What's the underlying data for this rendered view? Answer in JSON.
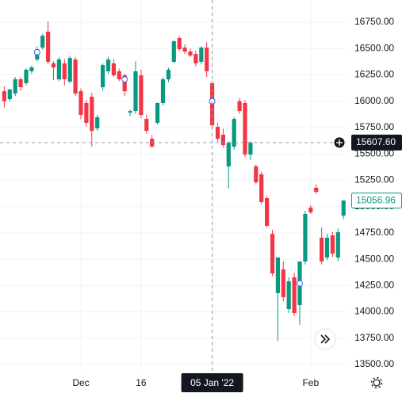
{
  "chart_data": {
    "type": "candlestick",
    "categories": [
      null,
      null,
      null,
      null,
      null,
      null,
      null,
      null,
      null,
      null,
      null,
      null,
      null,
      null,
      "Dec",
      null,
      null,
      null,
      null,
      null,
      null,
      null,
      null,
      null,
      null,
      "16",
      null,
      null,
      null,
      null,
      null,
      null,
      null,
      null,
      null,
      null,
      null,
      null,
      "05 Jan '22",
      null,
      null,
      null,
      null,
      null,
      null,
      null,
      null,
      null,
      null,
      null,
      null,
      null,
      null,
      null,
      null,
      null,
      "Feb",
      null,
      null,
      null,
      null,
      null,
      null
    ],
    "open": [
      16095,
      16020,
      16073,
      16208,
      16171,
      16284,
      16396,
      16509,
      16660,
      16359,
      16208,
      16359,
      16186,
      16396,
      16095,
      15983,
      16043,
      15742,
      16133,
      16284,
      16359,
      16284,
      16246,
      15892,
      15907,
      16246,
      15832,
      15644,
      15795,
      15983,
      16208,
      16374,
      16600,
      16509,
      16472,
      16449,
      16374,
      16509,
      16171,
      15757,
      15682,
      15381,
      15569,
      16000,
      15983,
      15494,
      15381,
      15306,
      15080,
      14741,
      14178,
      14403,
      14027,
      14328,
      14064,
      14478,
      14990,
      15178,
      14704,
      14516,
      14726,
      14516,
      14914
    ],
    "high": [
      16140,
      16120,
      16230,
      16230,
      16310,
      16340,
      16520,
      16640,
      16758,
      16380,
      16420,
      16400,
      16430,
      16420,
      16120,
      16010,
      16080,
      15870,
      16360,
      16420,
      16400,
      16310,
      16260,
      15920,
      16380,
      16300,
      15870,
      15680,
      15990,
      16230,
      16320,
      16580,
      16620,
      16540,
      16500,
      16480,
      16520,
      16560,
      16190,
      15790,
      15740,
      15620,
      15850,
      16030,
      16010,
      15620,
      15400,
      15330,
      15100,
      14780,
      14520,
      14480,
      14330,
      14370,
      14450,
      14960,
      15010,
      15210,
      14800,
      14740,
      14760,
      14790,
      15060
    ],
    "low": [
      15940,
      16000,
      16050,
      16100,
      16150,
      16260,
      16380,
      16490,
      16350,
      16200,
      16190,
      16150,
      16170,
      16050,
      15830,
      15760,
      15569,
      15720,
      16100,
      16260,
      16230,
      16190,
      16050,
      15860,
      15880,
      15840,
      15690,
      15560,
      15780,
      15960,
      16180,
      16360,
      16480,
      16450,
      16420,
      16330,
      16350,
      16230,
      15750,
      15620,
      15560,
      15170,
      15540,
      15880,
      15470,
      15440,
      15210,
      15020,
      14800,
      14340,
      13726,
      14100,
      13990,
      13960,
      13876,
      14450,
      14930,
      15120,
      14450,
      14490,
      14520,
      14480,
      14880
    ],
    "close": [
      16000,
      16111,
      16208,
      16133,
      16299,
      16321,
      16494,
      16622,
      16374,
      16321,
      16396,
      16208,
      16411,
      16073,
      15870,
      15795,
      15719,
      15847,
      16344,
      16396,
      16246,
      16208,
      16095,
      15907,
      16284,
      15870,
      15719,
      15569,
      15983,
      16208,
      16299,
      16569,
      16494,
      16472,
      16434,
      16359,
      16509,
      16284,
      15772,
      15644,
      15584,
      15606,
      15832,
      15907,
      15494,
      15606,
      15230,
      15042,
      14817,
      14365,
      14516,
      14140,
      14290,
      13989,
      14478,
      14930,
      14945,
      15140,
      14478,
      14704,
      14553,
      14756,
      15056.96
    ],
    "up_color": "#089981",
    "down_color": "#f23645",
    "ylim": [
      13440,
      16961
    ],
    "yticks": [
      {
        "value": 13500,
        "label": "13500.00"
      },
      {
        "value": 13750,
        "label": "13750.00"
      },
      {
        "value": 14000,
        "label": "14000.00"
      },
      {
        "value": 14250,
        "label": "14250.00"
      },
      {
        "value": 14500,
        "label": "14500.00"
      },
      {
        "value": 14750,
        "label": "14750.00"
      },
      {
        "value": 15000,
        "label": "15000.00"
      },
      {
        "value": 15250,
        "label": "15250.00"
      },
      {
        "value": 15500,
        "label": "15500.00"
      },
      {
        "value": 15750,
        "label": "15750.00"
      },
      {
        "value": 16000,
        "label": "16000.00"
      },
      {
        "value": 16250,
        "label": "16250.00"
      },
      {
        "value": 16500,
        "label": "16500.00"
      },
      {
        "value": 16750,
        "label": "16750.00"
      }
    ],
    "grid": true,
    "crosshair": {
      "category": 38,
      "price": {
        "value": 15607.6,
        "label": "15607.60"
      }
    },
    "last_price": {
      "value": 15056.96,
      "label": "15056.96"
    }
  }
}
